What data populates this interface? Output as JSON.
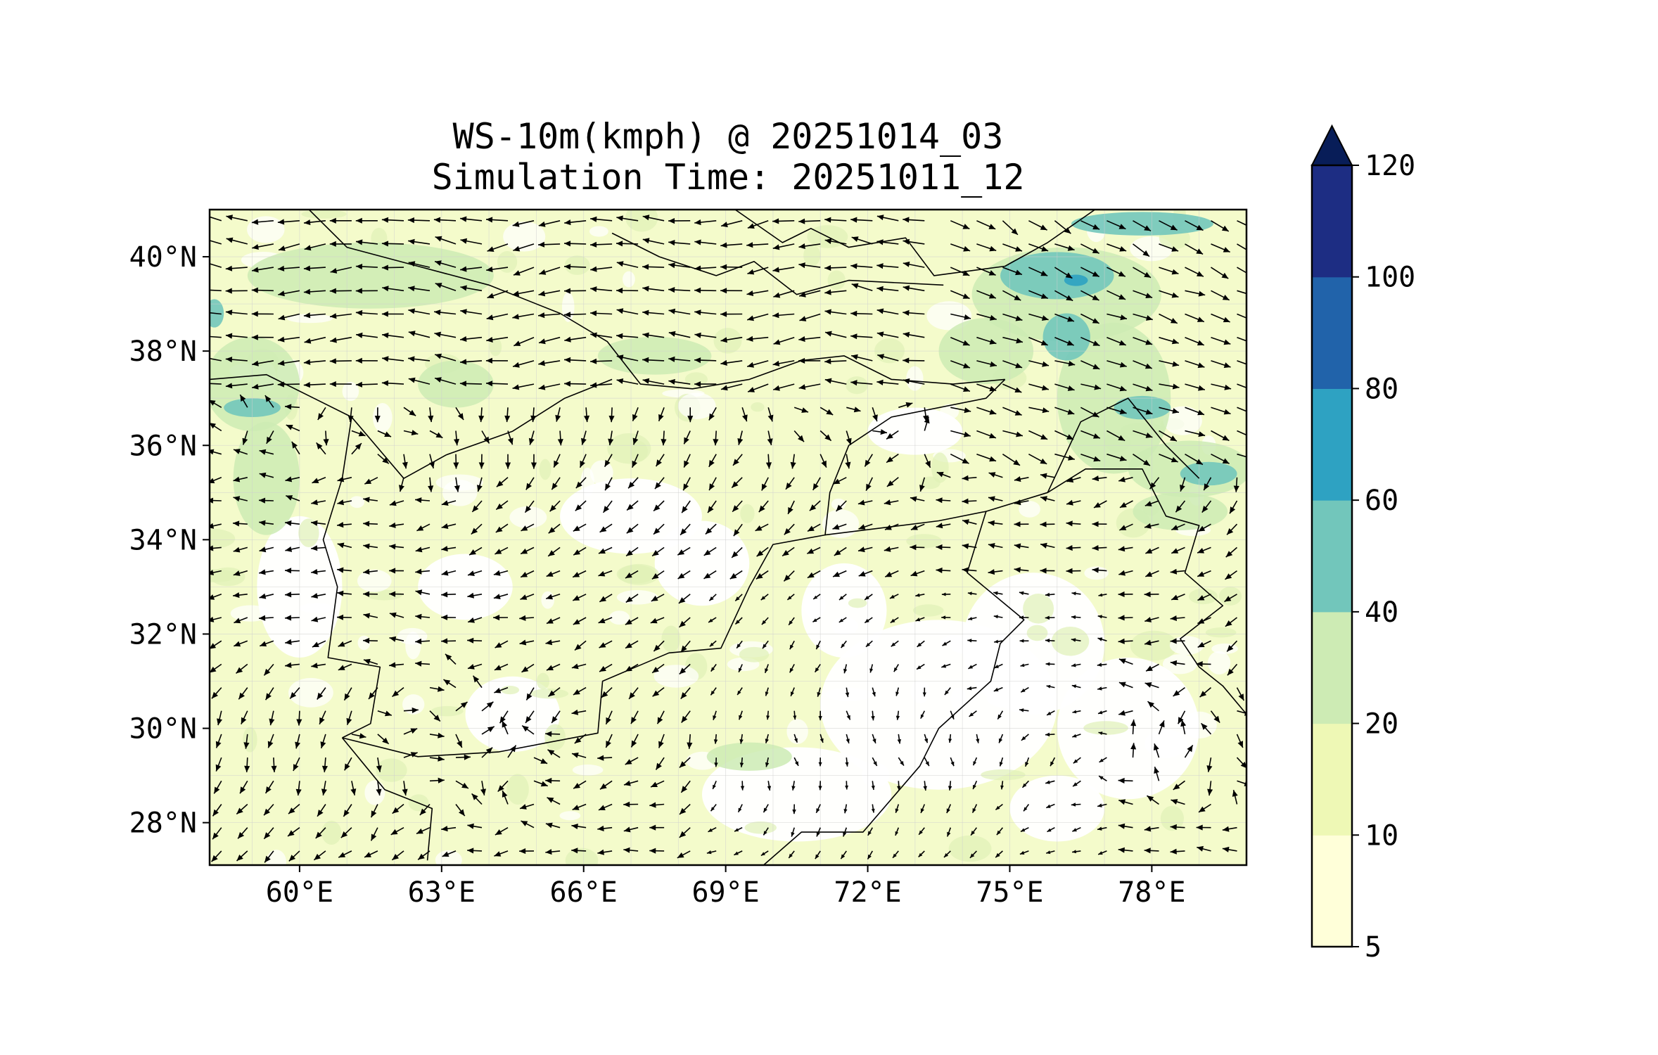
{
  "title": {
    "line1": "WS-10m(kmph) @ 20251014_03",
    "line2": "Simulation Time: 20251011_12"
  },
  "map": {
    "variable": "10 m wind speed (kmph) with wind vectors",
    "lon_range": [
      58.1,
      80.0
    ],
    "lat_range": [
      27.1,
      41.0
    ],
    "lon_ticks": [
      "60°E",
      "63°E",
      "66°E",
      "69°E",
      "72°E",
      "75°E",
      "78°E"
    ],
    "lon_tick_values": [
      60,
      63,
      66,
      69,
      72,
      75,
      78
    ],
    "lat_ticks": [
      "40°N",
      "38°N",
      "36°N",
      "34°N",
      "32°N",
      "30°N",
      "28°N"
    ],
    "lat_tick_values": [
      40,
      38,
      36,
      34,
      32,
      30,
      28
    ]
  },
  "colorbar": {
    "levels": [
      5,
      10,
      20,
      40,
      60,
      80,
      100,
      120
    ],
    "labels": [
      "5",
      "10",
      "20",
      "40",
      "60",
      "80",
      "100",
      "120"
    ],
    "colors": [
      "#ffffd9",
      "#eef8b5",
      "#cdebb4",
      "#72c6bb",
      "#2ea2c2",
      "#2163aa",
      "#1d2d83"
    ],
    "extend_color": "#081d58",
    "extend": "max"
  }
}
